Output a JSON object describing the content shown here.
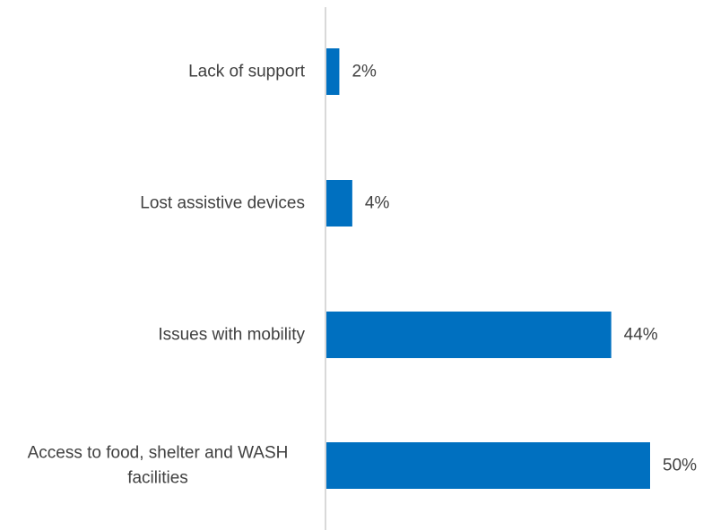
{
  "chart_data": {
    "type": "bar",
    "orientation": "horizontal",
    "categories": [
      "Lack of support",
      "Lost assistive devices",
      "Issues with mobility",
      "Access to food, shelter and WASH facilities"
    ],
    "category_lines": [
      [
        "Lack of support"
      ],
      [
        "Lost assistive devices"
      ],
      [
        "Issues with mobility"
      ],
      [
        "Access to food, shelter and WASH",
        "facilities"
      ]
    ],
    "values": [
      2,
      4,
      44,
      50
    ],
    "value_labels": [
      "2%",
      "4%",
      "44%",
      "50%"
    ],
    "xlim": [
      0,
      50
    ],
    "bar_color": "#0070C0",
    "axis_color": "#D9D9D9",
    "text_color": "#404040",
    "grid": false,
    "legend": "none"
  }
}
